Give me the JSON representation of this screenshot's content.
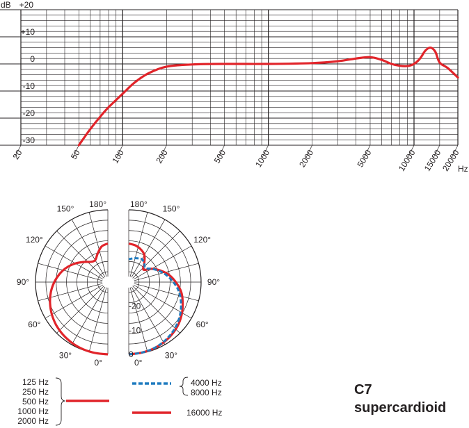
{
  "chart_data": [
    {
      "type": "line",
      "title": "",
      "xlabel": "Hz",
      "ylabel": "dB",
      "xscale": "log",
      "xlim": [
        20,
        20000
      ],
      "ylim": [
        -30,
        20
      ],
      "grid": true,
      "x_tick_labels": [
        "20",
        "50",
        "100",
        "200",
        "500",
        "1000",
        "2000",
        "5000",
        "10000",
        "15000",
        "20000"
      ],
      "y_tick_labels": [
        "+20",
        "+10",
        "0",
        "-10",
        "-20",
        "-30"
      ],
      "series": [
        {
          "color": "#e1242a",
          "x": [
            50,
            60,
            70,
            80,
            100,
            120,
            150,
            200,
            300,
            500,
            1000,
            2000,
            3000,
            4000,
            5000,
            6000,
            7000,
            8000,
            9000,
            10000,
            11000,
            12000,
            13000,
            14000,
            15000,
            17000,
            20000
          ],
          "y": [
            -30,
            -24,
            -19.5,
            -16,
            -11,
            -7,
            -3.5,
            -1,
            -0.2,
            0,
            0,
            0.3,
            1,
            2,
            2.5,
            1.5,
            0,
            -0.7,
            -0.8,
            0,
            2,
            5,
            6,
            4.5,
            0.5,
            -1.5,
            -5
          ]
        }
      ]
    },
    {
      "type": "polar",
      "title": "",
      "angle_labels": [
        "180°",
        "150°",
        "120°",
        "90°",
        "60°",
        "30°",
        "0°"
      ],
      "radial_labels": [
        "-20",
        "-10",
        "0"
      ],
      "rlim": [
        -30,
        0
      ],
      "series": [
        {
          "name": "125 Hz 250 Hz 500 Hz 1000 Hz 2000 Hz",
          "color": "#e1242a",
          "dash": "solid",
          "angle": [
            0,
            10,
            20,
            30,
            40,
            50,
            60,
            70,
            80,
            90,
            100,
            110,
            120,
            130,
            140,
            150,
            160,
            170,
            180
          ],
          "db": [
            0,
            -0.1,
            -0.3,
            -0.7,
            -1.3,
            -2.1,
            -3.2,
            -4.5,
            -6,
            -7.8,
            -9.8,
            -12,
            -14.5,
            -17,
            -19,
            -19.5,
            -17.5,
            -15,
            -14
          ]
        },
        {
          "name": "4000 Hz 8000 Hz",
          "color": "#1f7bbf",
          "dash": "dashed",
          "angle": [
            0,
            10,
            20,
            30,
            40,
            50,
            60,
            70,
            80,
            90,
            100,
            110,
            120,
            130,
            140,
            150,
            160,
            170,
            180
          ],
          "db": [
            0,
            -0.2,
            -0.6,
            -1.3,
            -2.3,
            -3.6,
            -5.2,
            -7,
            -9,
            -11.5,
            -14,
            -16.5,
            -19,
            -21,
            -20,
            -19,
            -19.5,
            -20,
            -20.5
          ]
        },
        {
          "name": "16000 Hz",
          "color": "#e1242a",
          "dash": "solid",
          "angle": [
            0,
            10,
            20,
            30,
            40,
            50,
            60,
            70,
            80,
            90,
            100,
            110,
            120,
            130,
            140,
            150,
            160,
            170,
            180
          ],
          "db": [
            0,
            -0.2,
            -0.5,
            -1.1,
            -1.9,
            -3,
            -4.5,
            -6.2,
            -8,
            -10.5,
            -13,
            -16,
            -19,
            -22,
            -20,
            -17,
            -15.5,
            -14.5,
            -14
          ]
        }
      ]
    }
  ],
  "legend": {
    "group1_lines": [
      "125 Hz",
      "250 Hz",
      "500 Hz",
      "1000 Hz",
      "2000 Hz"
    ],
    "group2_lines": [
      "4000 Hz",
      "8000 Hz"
    ],
    "group3_lines": [
      "16000 Hz"
    ]
  },
  "model": {
    "name": "C7",
    "pattern": "supercardioid"
  }
}
